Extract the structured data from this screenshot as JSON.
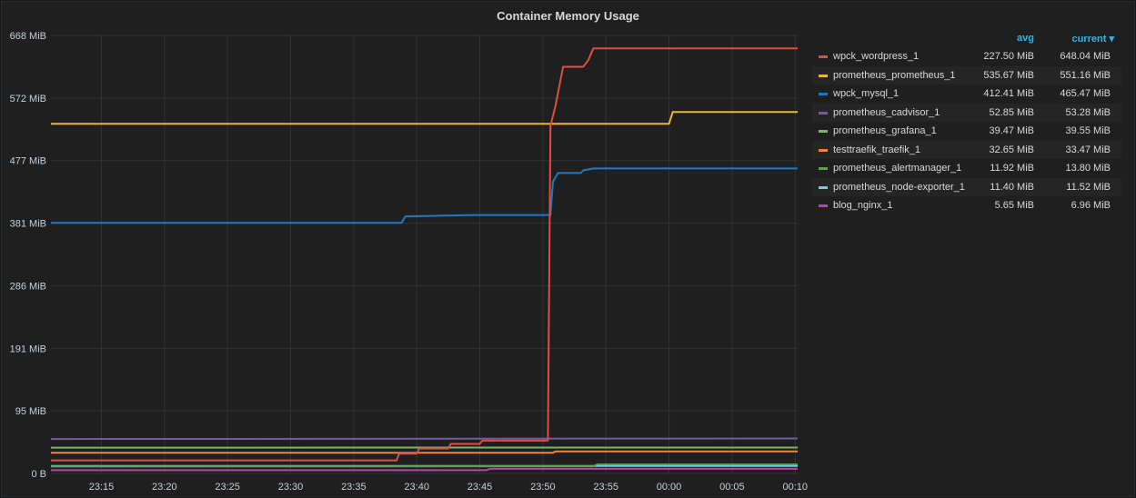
{
  "panel": {
    "title": "Container Memory Usage"
  },
  "legend": {
    "headers": {
      "avg": "avg",
      "current": "current ▾"
    }
  },
  "chart_data": {
    "type": "line",
    "title": "Container Memory Usage",
    "x_unit": "time",
    "x_ticks": [
      "23:15",
      "23:20",
      "23:25",
      "23:30",
      "23:35",
      "23:40",
      "23:45",
      "23:50",
      "23:55",
      "00:00",
      "00:05",
      "00:10"
    ],
    "x_tick_minutes": [
      15,
      20,
      25,
      30,
      35,
      40,
      45,
      50,
      55,
      60,
      65,
      70
    ],
    "xlim_minutes": [
      11,
      70.2
    ],
    "y_ticks": [
      "0 B",
      "95 MiB",
      "191 MiB",
      "286 MiB",
      "381 MiB",
      "477 MiB",
      "572 MiB",
      "668 MiB"
    ],
    "y_tick_values": [
      0,
      95.4,
      190.8,
      286.2,
      381.6,
      477,
      572.4,
      667.8
    ],
    "ylim": [
      0,
      667.8
    ],
    "y_unit": "MiB",
    "grid": true,
    "legend_position": "right",
    "series": [
      {
        "name": "wpck_wordpress_1",
        "color": "#e24d42",
        "avg": "227.50 MiB",
        "current": "648.04 MiB",
        "points": [
          [
            11,
            20
          ],
          [
            38.4,
            20
          ],
          [
            38.6,
            30
          ],
          [
            40,
            30
          ],
          [
            40.2,
            38
          ],
          [
            42.5,
            38
          ],
          [
            42.7,
            45
          ],
          [
            45,
            45
          ],
          [
            45.2,
            50
          ],
          [
            50.4,
            50
          ],
          [
            50.6,
            530
          ],
          [
            51,
            560
          ],
          [
            51.6,
            620
          ],
          [
            53.2,
            620
          ],
          [
            53.6,
            630
          ],
          [
            54,
            648
          ],
          [
            70.2,
            648
          ]
        ]
      },
      {
        "name": "prometheus_prometheus_1",
        "color": "#eab839",
        "avg": "535.67 MiB",
        "current": "551.16 MiB",
        "points": [
          [
            11,
            533
          ],
          [
            60,
            533
          ],
          [
            60.3,
            551
          ],
          [
            70.2,
            551
          ]
        ]
      },
      {
        "name": "wpck_mysql_1",
        "color": "#1f78c1",
        "avg": "412.41 MiB",
        "current": "465.47 MiB",
        "points": [
          [
            11,
            382
          ],
          [
            38.8,
            382
          ],
          [
            39.1,
            392
          ],
          [
            44.5,
            394
          ],
          [
            50.6,
            394
          ],
          [
            50.8,
            445
          ],
          [
            51.2,
            458
          ],
          [
            53,
            458
          ],
          [
            53.2,
            462
          ],
          [
            54,
            465
          ],
          [
            70.2,
            465
          ]
        ]
      },
      {
        "name": "prometheus_cadvisor_1",
        "color": "#705da0",
        "avg": "52.85 MiB",
        "current": "53.28 MiB",
        "points": [
          [
            11,
            52.5
          ],
          [
            70.2,
            53.3
          ]
        ]
      },
      {
        "name": "prometheus_grafana_1",
        "color": "#7eb26d",
        "avg": "39.47 MiB",
        "current": "39.55 MiB",
        "points": [
          [
            11,
            39.4
          ],
          [
            70.2,
            39.5
          ]
        ]
      },
      {
        "name": "testtraefik_traefik_1",
        "color": "#ef843c",
        "avg": "32.65 MiB",
        "current": "33.47 MiB",
        "points": [
          [
            11,
            31.5
          ],
          [
            50.8,
            31.5
          ],
          [
            51,
            33.5
          ],
          [
            70.2,
            33.5
          ]
        ]
      },
      {
        "name": "prometheus_alertmanager_1",
        "color": "#629e51",
        "avg": "11.92 MiB",
        "current": "13.80 MiB",
        "points": [
          [
            11,
            10.5
          ],
          [
            54,
            11
          ],
          [
            54.3,
            13.8
          ],
          [
            70.2,
            13.8
          ]
        ]
      },
      {
        "name": "prometheus_node-exporter_1",
        "color": "#6ed0e0",
        "avg": "11.40 MiB",
        "current": "11.52 MiB",
        "points": [
          [
            11,
            11.3
          ],
          [
            70.2,
            11.5
          ]
        ]
      },
      {
        "name": "blog_nginx_1",
        "color": "#ba43a9",
        "avg": "5.65 MiB",
        "current": "6.96 MiB",
        "points": [
          [
            11,
            5
          ],
          [
            45.5,
            5
          ],
          [
            45.8,
            7
          ],
          [
            70.2,
            7
          ]
        ]
      }
    ]
  }
}
